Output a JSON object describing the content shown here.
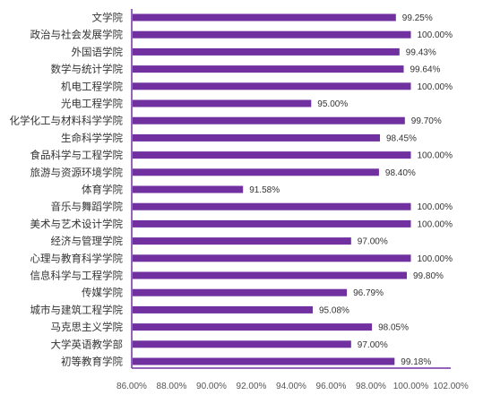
{
  "chart_data": {
    "type": "bar",
    "orientation": "horizontal",
    "title": "",
    "xlabel": "",
    "ylabel": "",
    "categories": [
      "文学院",
      "政治与社会发展学院",
      "外国语学院",
      "数学与统计学院",
      "机电工程学院",
      "光电工程学院",
      "化学化工与材料科学学院",
      "生命科学学院",
      "食品科学与工程学院",
      "旅游与资源环境学院",
      "体育学院",
      "音乐与舞蹈学院",
      "美术与艺术设计学院",
      "经济与管理学院",
      "心理与教育科学学院",
      "信息科学与工程学院",
      "传媒学院",
      "城市与建筑工程学院",
      "马克思主义学院",
      "大学英语教学部",
      "初等教育学院"
    ],
    "values": [
      99.25,
      100.0,
      99.43,
      99.64,
      100.0,
      95.0,
      99.7,
      98.45,
      100.0,
      98.4,
      91.58,
      100.0,
      100.0,
      97.0,
      100.0,
      99.8,
      96.79,
      95.08,
      98.05,
      97.0,
      99.18
    ],
    "value_labels": [
      "99.25%",
      "100.00%",
      "99.43%",
      "99.64%",
      "100.00%",
      "95.00%",
      "99.70%",
      "98.45%",
      "100.00%",
      "98.40%",
      "91.58%",
      "100.00%",
      "100.00%",
      "97.00%",
      "100.00%",
      "99.80%",
      "96.79%",
      "95.08%",
      "98.05%",
      "97.00%",
      "99.18%"
    ],
    "xlim": [
      86,
      102
    ],
    "x_ticks": [
      86,
      88,
      90,
      92,
      94,
      96,
      98,
      100,
      102
    ],
    "x_tick_labels": [
      "86.00%",
      "88.00%",
      "90.00%",
      "92.00%",
      "94.00%",
      "96.00%",
      "98.00%",
      "100.00%",
      "102.00%"
    ],
    "grid": false,
    "legend": "none",
    "bar_color": "#7030A0",
    "axis_color": "#7030A0"
  }
}
